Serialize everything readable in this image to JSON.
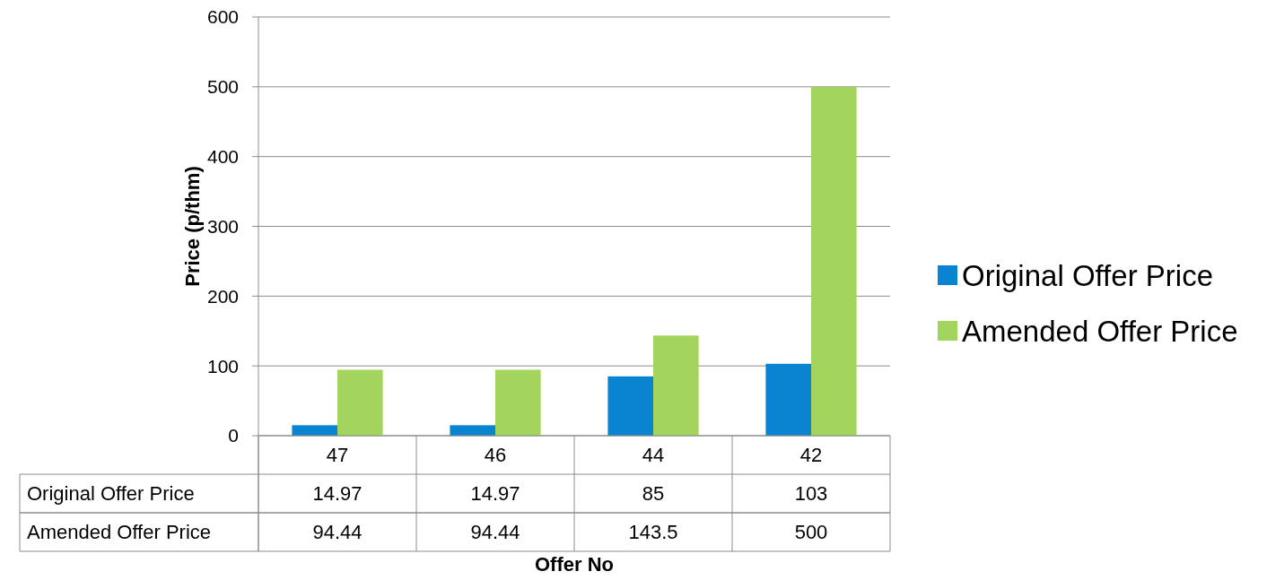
{
  "chart_data": {
    "type": "bar",
    "xlabel": "Offer No",
    "ylabel": "Price (p/thm)",
    "categories": [
      "47",
      "46",
      "44",
      "42"
    ],
    "series": [
      {
        "name": "Original Offer Price",
        "color": "#0a84d0",
        "values": [
          14.97,
          14.97,
          85,
          103
        ]
      },
      {
        "name": "Amended Offer Price",
        "color": "#a2d45e",
        "values": [
          94.44,
          94.44,
          143.5,
          500
        ]
      }
    ],
    "ylim": [
      0,
      600
    ],
    "yticks": [
      0,
      100,
      200,
      300,
      400,
      500,
      600
    ],
    "grid": "y",
    "legend": "right",
    "data_labels": true
  }
}
